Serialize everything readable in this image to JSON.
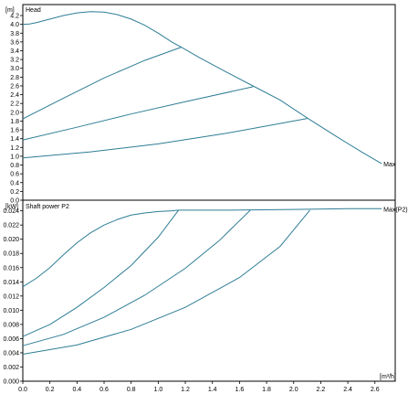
{
  "colors": {
    "curve": "#2e7d95",
    "frame": "#000000",
    "tick": "#000000"
  },
  "chart_data": [
    {
      "type": "line",
      "title": "Head",
      "ylabel": "[m]",
      "xlim": [
        0,
        2.75
      ],
      "ylim": [
        0,
        4.45
      ],
      "yticks": [
        "0.0",
        "0.2",
        "0.4",
        "0.6",
        "0.8",
        "1.0",
        "1.2",
        "1.4",
        "1.6",
        "1.8",
        "2.0",
        "2.2",
        "2.4",
        "2.6",
        "2.8",
        "3.0",
        "3.2",
        "3.4",
        "3.6",
        "3.8",
        "4.0",
        "4.2"
      ],
      "series": [
        {
          "name": "Max",
          "x": [
            0,
            0.05,
            0.1,
            0.2,
            0.3,
            0.4,
            0.5,
            0.6,
            0.7,
            0.8,
            0.9,
            1.0,
            1.1,
            1.17,
            1.3,
            1.5,
            1.7,
            1.9,
            2.1,
            2.3,
            2.5,
            2.65
          ],
          "y": [
            4.0,
            4.01,
            4.04,
            4.12,
            4.2,
            4.26,
            4.29,
            4.28,
            4.22,
            4.12,
            3.98,
            3.8,
            3.6,
            3.48,
            3.25,
            2.92,
            2.6,
            2.28,
            1.87,
            1.48,
            1.1,
            0.83
          ]
        },
        {
          "name": "",
          "x": [
            0,
            0.3,
            0.6,
            0.9,
            1.17
          ],
          "y": [
            1.85,
            2.32,
            2.78,
            3.18,
            3.48
          ]
        },
        {
          "name": "",
          "x": [
            0,
            0.4,
            0.8,
            1.2,
            1.7
          ],
          "y": [
            1.37,
            1.66,
            1.96,
            2.24,
            2.58
          ]
        },
        {
          "name": "",
          "x": [
            0,
            0.5,
            1.0,
            1.5,
            2.1
          ],
          "y": [
            0.96,
            1.1,
            1.28,
            1.52,
            1.86
          ]
        }
      ],
      "annotation": "Max"
    },
    {
      "type": "line",
      "title": "Shaft power P2",
      "ylabel": "[kW]",
      "xlabel": "[m³/h]",
      "xlim": [
        0,
        2.75
      ],
      "ylim": [
        0,
        0.0255
      ],
      "xticks": [
        "0.0",
        "0.2",
        "0.4",
        "0.6",
        "0.8",
        "1.0",
        "1.2",
        "1.4",
        "1.6",
        "1.8",
        "2.0",
        "2.2",
        "2.4",
        "2.6"
      ],
      "yticks": [
        "0.000",
        "0.002",
        "0.004",
        "0.006",
        "0.008",
        "0.010",
        "0.012",
        "0.014",
        "0.016",
        "0.018",
        "0.020",
        "0.022",
        "0.024"
      ],
      "series": [
        {
          "name": "Max(P2)",
          "x": [
            0,
            0.1,
            0.2,
            0.3,
            0.4,
            0.5,
            0.6,
            0.7,
            0.8,
            0.9,
            1.0,
            1.1,
            1.15,
            1.5,
            2.0,
            2.4,
            2.65
          ],
          "y": [
            0.0133,
            0.0145,
            0.016,
            0.0178,
            0.0195,
            0.0209,
            0.022,
            0.0228,
            0.0234,
            0.0237,
            0.0239,
            0.024,
            0.0241,
            0.0241,
            0.0242,
            0.0243,
            0.0243
          ]
        },
        {
          "name": "",
          "x": [
            0,
            0.2,
            0.4,
            0.6,
            0.8,
            1.0,
            1.15
          ],
          "y": [
            0.0063,
            0.008,
            0.0104,
            0.0132,
            0.0163,
            0.0203,
            0.0241
          ]
        },
        {
          "name": "",
          "x": [
            0,
            0.3,
            0.6,
            0.9,
            1.2,
            1.45,
            1.68
          ],
          "y": [
            0.005,
            0.0066,
            0.009,
            0.0121,
            0.0159,
            0.0198,
            0.0241
          ]
        },
        {
          "name": "",
          "x": [
            0,
            0.4,
            0.8,
            1.2,
            1.6,
            1.9,
            2.12
          ],
          "y": [
            0.0038,
            0.0051,
            0.0073,
            0.0104,
            0.0146,
            0.019,
            0.0241
          ]
        }
      ],
      "annotation": "Max(P2)"
    }
  ]
}
